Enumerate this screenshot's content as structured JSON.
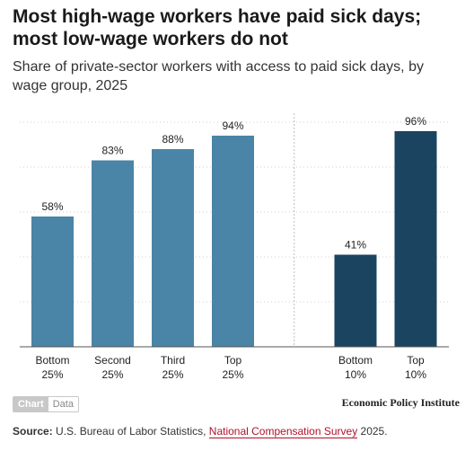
{
  "header": {
    "title": "Most high-wage workers have paid sick days; most low-wage workers do not",
    "subtitle": "Share of private-sector workers with access to paid sick days, by wage group, 2025"
  },
  "chart_data": {
    "type": "bar",
    "ylim": [
      0,
      100
    ],
    "grid": true,
    "value_suffix": "%",
    "groups": [
      {
        "color": "#4a84a6",
        "bars": [
          {
            "label": [
              "Bottom",
              "25%"
            ],
            "value": 58,
            "value_label": "58%"
          },
          {
            "label": [
              "Second",
              "25%"
            ],
            "value": 83,
            "value_label": "83%"
          },
          {
            "label": [
              "Third",
              "25%"
            ],
            "value": 88,
            "value_label": "88%"
          },
          {
            "label": [
              "Top",
              "25%"
            ],
            "value": 94,
            "value_label": "94%"
          }
        ]
      },
      {
        "color": "#1b4460",
        "bars": [
          {
            "label": [
              "Bottom",
              "10%"
            ],
            "value": 41,
            "value_label": "41%"
          },
          {
            "label": [
              "Top",
              "10%"
            ],
            "value": 96,
            "value_label": "96%"
          }
        ]
      }
    ]
  },
  "controls": {
    "chart_label": "Chart",
    "data_label": "Data"
  },
  "branding": "Economic Policy Institute",
  "source": {
    "prefix": "Source:",
    "text_before": "U.S. Bureau of Labor Statistics, ",
    "link": "National Compensation Survey",
    "text_after": " 2025."
  }
}
